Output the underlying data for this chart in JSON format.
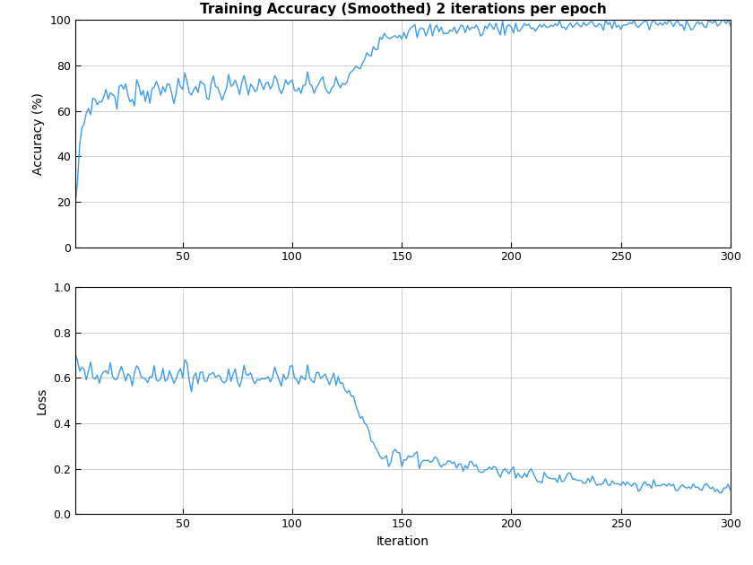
{
  "title": "Training Accuracy (Smoothed) 2 iterations per epoch",
  "xlabel": "Iteration",
  "ylabel_top": "Accuracy (%)",
  "ylabel_bottom": "Loss",
  "line_color": "#3d9de8",
  "line_width": 1.0,
  "xlim": [
    1,
    300
  ],
  "acc_ylim": [
    0,
    100
  ],
  "loss_ylim": [
    0,
    1
  ],
  "acc_yticks": [
    0,
    20,
    40,
    60,
    80,
    100
  ],
  "loss_yticks": [
    0,
    0.2,
    0.4,
    0.6,
    0.8,
    1.0
  ],
  "xticks": [
    50,
    100,
    150,
    200,
    250,
    300
  ],
  "background_color": "#ffffff",
  "grid_color": "#b0b0b0",
  "title_fontsize": 11,
  "label_fontsize": 10,
  "tick_fontsize": 9
}
